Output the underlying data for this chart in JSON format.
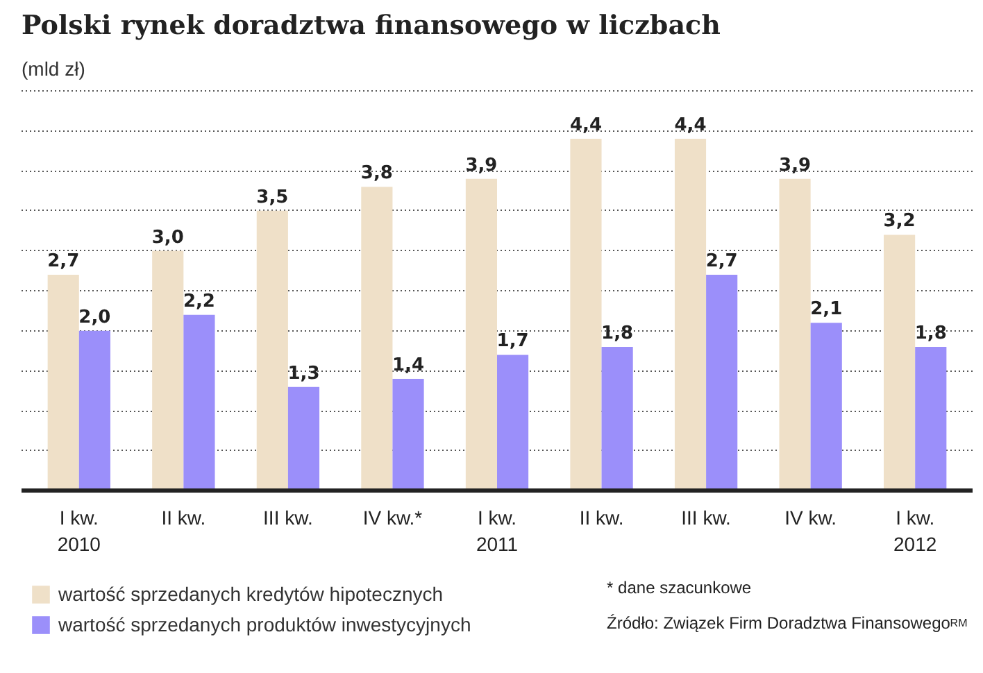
{
  "chart_data": {
    "type": "bar",
    "title": "Polski rynek doradztwa finansowego w liczbach",
    "subtitle": "(mld zł)",
    "categories": [
      "I kw.\n2010",
      "II kw.",
      "III kw.",
      "IV kw.*",
      "I kw.\n2011",
      "II kw.",
      "III kw.",
      "IV kw.",
      "I kw.\n2012"
    ],
    "series": [
      {
        "name": "wartość sprzedanych kredytów hipotecznych",
        "color": "#efe0c8",
        "values": [
          2.7,
          3.0,
          3.5,
          3.8,
          3.9,
          4.4,
          4.4,
          3.9,
          3.2
        ],
        "value_labels": [
          "2,7",
          "3,0",
          "3,5",
          "3,8",
          "3,9",
          "4,4",
          "4,4",
          "3,9",
          "3,2"
        ]
      },
      {
        "name": "wartość sprzedanych produktów inwestycyjnych",
        "color": "#9b8ffa",
        "values": [
          2.0,
          2.2,
          1.3,
          1.4,
          1.7,
          1.8,
          2.7,
          2.1,
          1.8
        ],
        "value_labels": [
          "2,0",
          "2,2",
          "1,3",
          "1,4",
          "1,7",
          "1,8",
          "2,7",
          "2,1",
          "1,8"
        ]
      }
    ],
    "yticks": [
      {
        "value": 0.5,
        "label": null
      },
      {
        "value": 1,
        "label": null
      },
      {
        "value": 1.5,
        "label": null
      },
      {
        "value": 2,
        "label": null
      },
      {
        "value": 2.5,
        "label": null
      },
      {
        "value": 3,
        "label": null
      },
      {
        "value": 3.5,
        "label": null
      },
      {
        "value": 4,
        "label": null
      },
      {
        "value": 4.5,
        "label": null
      },
      {
        "value": 5,
        "label": null
      }
    ],
    "tick_labels": "x",
    "grid": "y",
    "legend": "bottom",
    "annotations": [
      "* dane szacunkowe",
      "Źródło: Związek Firm Doradztwa Finansowego",
      "RM"
    ]
  }
}
